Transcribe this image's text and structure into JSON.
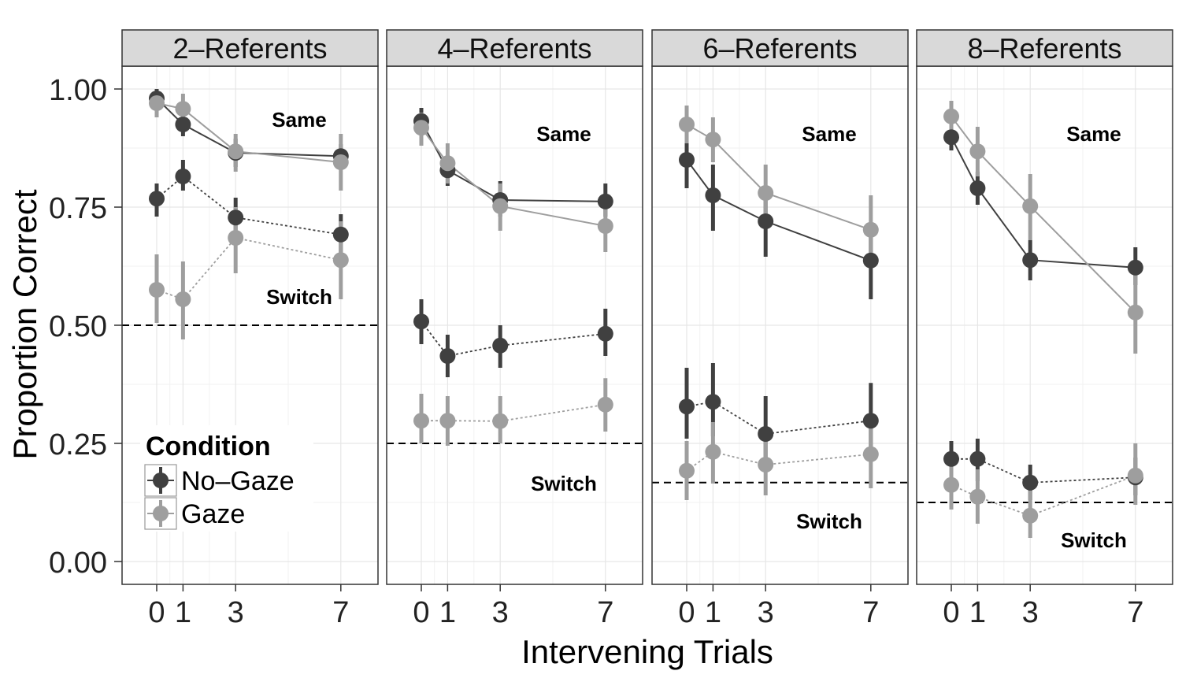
{
  "chart_data": {
    "type": "line",
    "ylabel": "Proportion Correct",
    "xlabel": "Intervening Trials",
    "x_ticks": [
      0,
      1,
      3,
      7
    ],
    "y_ticks": [
      "0.00",
      "0.25",
      "0.50",
      "0.75",
      "1.00"
    ],
    "ylim": [
      -0.05,
      1.1
    ],
    "xlim": [
      -1.3,
      8.3
    ],
    "grid": true,
    "legend": {
      "title": "Condition",
      "placement": "bottom-left",
      "entries": [
        {
          "name": "No–Gaze",
          "color": "#404040"
        },
        {
          "name": "Gaze",
          "color": "#9e9e9e"
        }
      ]
    },
    "panels": [
      {
        "title": "2–Referents",
        "chance": 0.5,
        "same_label": "Same",
        "switch_label": "Switch",
        "same_label_y": 0.935,
        "switch_label_y": 0.56,
        "series": [
          {
            "name": "No–Gaze",
            "trial": "Same",
            "x": [
              0,
              1,
              3,
              7
            ],
            "y": [
              0.98,
              0.925,
              0.865,
              0.858
            ],
            "lo": [
              0.955,
              0.9,
              0.835,
              0.832
            ],
            "hi": [
              1.0,
              0.95,
              0.895,
              0.883
            ]
          },
          {
            "name": "Gaze",
            "trial": "Same",
            "x": [
              0,
              1,
              3,
              7
            ],
            "y": [
              0.97,
              0.958,
              0.868,
              0.845
            ],
            "lo": [
              0.94,
              0.92,
              0.825,
              0.785
            ],
            "hi": [
              0.995,
              0.99,
              0.905,
              0.905
            ]
          },
          {
            "name": "No–Gaze",
            "trial": "Switch",
            "x": [
              0,
              1,
              3,
              7
            ],
            "y": [
              0.768,
              0.815,
              0.728,
              0.692
            ],
            "lo": [
              0.73,
              0.785,
              0.69,
              0.65
            ],
            "hi": [
              0.8,
              0.85,
              0.77,
              0.735
            ]
          },
          {
            "name": "Gaze",
            "trial": "Switch",
            "x": [
              0,
              1,
              3,
              7
            ],
            "y": [
              0.575,
              0.555,
              0.685,
              0.638
            ],
            "lo": [
              0.505,
              0.47,
              0.61,
              0.555
            ],
            "hi": [
              0.65,
              0.635,
              0.75,
              0.72
            ]
          }
        ]
      },
      {
        "title": "4–Referents",
        "chance": 0.25,
        "same_label": "Same",
        "switch_label": "Switch",
        "same_label_y": 0.905,
        "switch_label_y": 0.165,
        "series": [
          {
            "name": "No–Gaze",
            "trial": "Same",
            "x": [
              0,
              1,
              3,
              7
            ],
            "y": [
              0.932,
              0.828,
              0.765,
              0.762
            ],
            "lo": [
              0.905,
              0.795,
              0.73,
              0.73
            ],
            "hi": [
              0.96,
              0.86,
              0.805,
              0.8
            ]
          },
          {
            "name": "Gaze",
            "trial": "Same",
            "x": [
              0,
              1,
              3,
              7
            ],
            "y": [
              0.918,
              0.843,
              0.752,
              0.71
            ],
            "lo": [
              0.88,
              0.8,
              0.7,
              0.655
            ],
            "hi": [
              0.95,
              0.885,
              0.8,
              0.765
            ]
          },
          {
            "name": "No–Gaze",
            "trial": "Switch",
            "x": [
              0,
              1,
              3,
              7
            ],
            "y": [
              0.508,
              0.435,
              0.457,
              0.482
            ],
            "lo": [
              0.46,
              0.39,
              0.41,
              0.435
            ],
            "hi": [
              0.555,
              0.48,
              0.5,
              0.535
            ]
          },
          {
            "name": "Gaze",
            "trial": "Switch",
            "x": [
              0,
              1,
              3,
              7
            ],
            "y": [
              0.298,
              0.298,
              0.297,
              0.332
            ],
            "lo": [
              0.25,
              0.245,
              0.25,
              0.275
            ],
            "hi": [
              0.355,
              0.35,
              0.35,
              0.388
            ]
          }
        ]
      },
      {
        "title": "6–Referents",
        "chance": 0.167,
        "same_label": "Same",
        "switch_label": "Switch",
        "same_label_y": 0.905,
        "switch_label_y": 0.085,
        "series": [
          {
            "name": "No–Gaze",
            "trial": "Same",
            "x": [
              0,
              1,
              3,
              7
            ],
            "y": [
              0.85,
              0.775,
              0.72,
              0.637
            ],
            "lo": [
              0.79,
              0.7,
              0.645,
              0.555
            ],
            "hi": [
              0.89,
              0.84,
              0.78,
              0.69
            ]
          },
          {
            "name": "Gaze",
            "trial": "Same",
            "x": [
              0,
              1,
              3,
              7
            ],
            "y": [
              0.925,
              0.893,
              0.78,
              0.702
            ],
            "lo": [
              0.885,
              0.845,
              0.72,
              0.625
            ],
            "hi": [
              0.965,
              0.94,
              0.84,
              0.775
            ]
          },
          {
            "name": "No–Gaze",
            "trial": "Switch",
            "x": [
              0,
              1,
              3,
              7
            ],
            "y": [
              0.328,
              0.338,
              0.27,
              0.298
            ],
            "lo": [
              0.26,
              0.265,
              0.19,
              0.22
            ],
            "hi": [
              0.41,
              0.42,
              0.35,
              0.378
            ]
          },
          {
            "name": "Gaze",
            "trial": "Switch",
            "x": [
              0,
              1,
              3,
              7
            ],
            "y": [
              0.192,
              0.232,
              0.205,
              0.227
            ],
            "lo": [
              0.13,
              0.165,
              0.14,
              0.155
            ],
            "hi": [
              0.255,
              0.295,
              0.265,
              0.29
            ]
          }
        ]
      },
      {
        "title": "8–Referents",
        "chance": 0.125,
        "same_label": "Same",
        "switch_label": "Switch",
        "same_label_y": 0.905,
        "switch_label_y": 0.045,
        "series": [
          {
            "name": "No–Gaze",
            "trial": "Same",
            "x": [
              0,
              1,
              3,
              7
            ],
            "y": [
              0.898,
              0.79,
              0.638,
              0.622
            ],
            "lo": [
              0.87,
              0.755,
              0.595,
              0.585
            ],
            "hi": [
              0.925,
              0.825,
              0.68,
              0.665
            ]
          },
          {
            "name": "Gaze",
            "trial": "Same",
            "x": [
              0,
              1,
              3,
              7
            ],
            "y": [
              0.942,
              0.868,
              0.752,
              0.527
            ],
            "lo": [
              0.91,
              0.815,
              0.68,
              0.44
            ],
            "hi": [
              0.975,
              0.92,
              0.82,
              0.61
            ]
          },
          {
            "name": "No–Gaze",
            "trial": "Switch",
            "x": [
              0,
              1,
              3,
              7
            ],
            "y": [
              0.217,
              0.217,
              0.167,
              0.178
            ],
            "lo": [
              0.175,
              0.17,
              0.13,
              0.14
            ],
            "hi": [
              0.255,
              0.26,
              0.205,
              0.22
            ]
          },
          {
            "name": "Gaze",
            "trial": "Switch",
            "x": [
              0,
              1,
              3,
              7
            ],
            "y": [
              0.162,
              0.137,
              0.097,
              0.182
            ],
            "lo": [
              0.11,
              0.08,
              0.05,
              0.12
            ],
            "hi": [
              0.215,
              0.195,
              0.15,
              0.25
            ]
          }
        ]
      }
    ]
  }
}
